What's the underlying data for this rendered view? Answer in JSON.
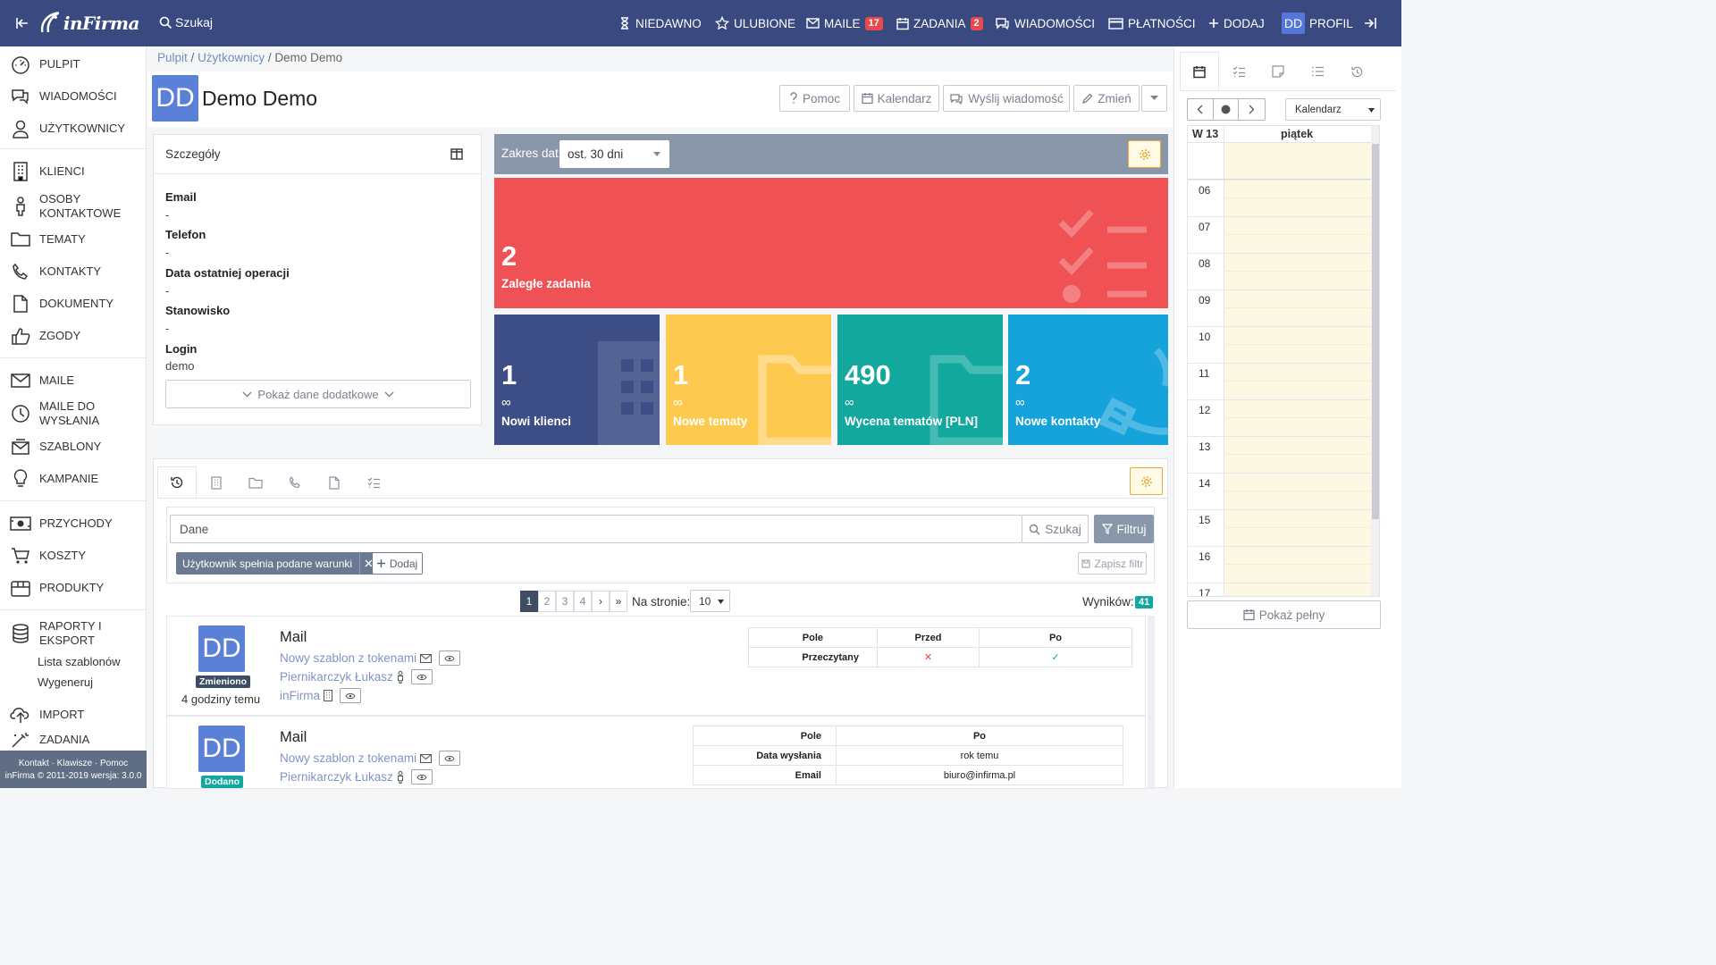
{
  "topbar": {
    "logo_text": "inFirma",
    "search_label": "Szukaj",
    "nav": [
      {
        "label": "NIEDAWNO",
        "icon": "hourglass-icon"
      },
      {
        "label": "ULUBIONE",
        "icon": "star-icon"
      },
      {
        "label": "MAILE",
        "icon": "envelope-icon",
        "badge": "17"
      },
      {
        "label": "ZADANIA",
        "icon": "calendar-icon",
        "badge": "2"
      },
      {
        "label": "WIADOMOŚCI",
        "icon": "chat-icon"
      },
      {
        "label": "PŁATNOŚCI",
        "icon": "credit-card-icon"
      },
      {
        "label": "DODAJ",
        "icon": "plus-icon"
      }
    ],
    "profile": {
      "initials": "DD",
      "label": "PROFIL"
    }
  },
  "sidebar": {
    "items": [
      {
        "label": "PULPIT",
        "icon": "dashboard-icon"
      },
      {
        "label": "WIADOMOŚCI",
        "icon": "chat-icon"
      },
      {
        "label": "UŻYTKOWNICY",
        "icon": "user-icon"
      },
      {
        "label": "KLIENCI",
        "icon": "building-icon"
      },
      {
        "label": "OSOBY KONTAKTOWE",
        "icon": "person-icon"
      },
      {
        "label": "TEMATY",
        "icon": "folder-icon"
      },
      {
        "label": "KONTAKTY",
        "icon": "phone-icon"
      },
      {
        "label": "DOKUMENTY",
        "icon": "document-icon"
      },
      {
        "label": "ZGODY",
        "icon": "thumbs-up-icon"
      },
      {
        "label": "MAILE",
        "icon": "envelope-icon"
      },
      {
        "label": "MAILE DO WYSŁANIA",
        "icon": "clock-icon"
      },
      {
        "label": "SZABLONY",
        "icon": "template-icon"
      },
      {
        "label": "KAMPANIE",
        "icon": "lightbulb-icon"
      },
      {
        "label": "PRZYCHODY",
        "icon": "money-icon"
      },
      {
        "label": "KOSZTY",
        "icon": "cart-icon"
      },
      {
        "label": "PRODUKTY",
        "icon": "box-icon"
      },
      {
        "label": "RAPORTY I EKSPORT",
        "icon": "database-icon"
      },
      {
        "label": "IMPORT",
        "icon": "upload-icon"
      },
      {
        "label": "ZADANIA",
        "icon": "magic-icon"
      }
    ],
    "sub_items": [
      "Lista szablonów",
      "Wygeneruj"
    ],
    "footer_links": "Kontakt · Klawisze · Pomoc",
    "footer_copy": "inFirma © 2011-2019 wersja: 3.0.0"
  },
  "breadcrumb": {
    "items": [
      "Pulpit",
      "Użytkownicy"
    ],
    "current": "Demo Demo"
  },
  "header": {
    "initials": "DD",
    "title": "Demo Demo",
    "buttons": {
      "help": "Pomoc",
      "calendar": "Kalendarz",
      "message": "Wyślij wiadomość",
      "edit": "Zmień"
    }
  },
  "details": {
    "title": "Szczegóły",
    "fields": [
      {
        "label": "Email",
        "value": "-"
      },
      {
        "label": "Telefon",
        "value": "-"
      },
      {
        "label": "Data ostatniej operacji",
        "value": "-"
      },
      {
        "label": "Stanowisko",
        "value": "-"
      },
      {
        "label": "Login",
        "value": "demo"
      }
    ],
    "show_more": "Pokaż dane dodatkowe"
  },
  "stats": {
    "range_label": "Zakres dat:",
    "range_value": "ost. 30 dni",
    "overdue": {
      "value": "2",
      "label": "Zaległe zadania",
      "color": "#ef5155"
    },
    "tiles": [
      {
        "value": "1",
        "inf": "∞",
        "label": "Nowi klienci",
        "color": "#3d4d86",
        "icon": "building-icon"
      },
      {
        "value": "1",
        "inf": "∞",
        "label": "Nowe tematy",
        "color": "#fdc94f",
        "icon": "folder-icon"
      },
      {
        "value": "490",
        "inf": "∞",
        "label": "Wycena tematów [PLN]",
        "color": "#13a89e",
        "icon": "folder-icon"
      },
      {
        "value": "2",
        "inf": "∞",
        "label": "Nowe kontakty",
        "color": "#16a3dc",
        "icon": "phone-icon"
      }
    ]
  },
  "activity": {
    "tabs": [
      "history-icon",
      "building-icon",
      "folder-icon",
      "phone-icon",
      "document-icon",
      "tasks-icon"
    ],
    "search_value": "Dane",
    "search_button": "Szukaj",
    "filter_button": "Filtruj",
    "condition_chip": "Użytkownik spełnia podane warunki",
    "add_button": "Dodaj",
    "save_filter": "Zapisz filtr",
    "pages": [
      "1",
      "2",
      "3",
      "4",
      "›",
      "»"
    ],
    "per_page_label": "Na stronie:",
    "per_page_value": "10",
    "results_label": "Wyników:",
    "results_count": "41",
    "items": [
      {
        "initials": "DD",
        "badge": "Zmieniono",
        "badge_color": "#3d4d62",
        "time": "4 godziny temu",
        "title": "Mail",
        "links": [
          {
            "text": "Nowy szablon z tokenami",
            "icon": "envelope-icon"
          },
          {
            "text": "Piernikarczyk Łukasz",
            "icon": "person-icon"
          },
          {
            "text": "inFirma",
            "icon": "building-icon"
          }
        ],
        "table_head": [
          "Pole",
          "Przed",
          "Po"
        ],
        "table_rows": [
          {
            "field": "Przeczytany",
            "before": "✕",
            "after": "✓"
          }
        ]
      },
      {
        "initials": "DD",
        "badge": "Dodano",
        "badge_color": "#13a89e",
        "title": "Mail",
        "links": [
          {
            "text": "Nowy szablon z tokenami",
            "icon": "envelope-icon"
          },
          {
            "text": "Piernikarczyk Łukasz",
            "icon": "person-icon"
          }
        ],
        "table_head": [
          "Pole",
          "Po"
        ],
        "table_rows": [
          {
            "field": "Data wysłania",
            "after": "rok temu"
          },
          {
            "field": "Email",
            "after": "biuro@infirma.pl"
          }
        ]
      }
    ]
  },
  "calendar": {
    "tabs": [
      "calendar-icon",
      "tasks-icon",
      "note-icon",
      "list-icon",
      "history-icon"
    ],
    "view_select": "Kalendarz",
    "week": "W 13",
    "day": "piątek",
    "hours": [
      "06",
      "07",
      "08",
      "09",
      "10",
      "11",
      "12",
      "13",
      "14",
      "15",
      "16",
      "17"
    ],
    "show_full": "Pokaż pełny"
  }
}
